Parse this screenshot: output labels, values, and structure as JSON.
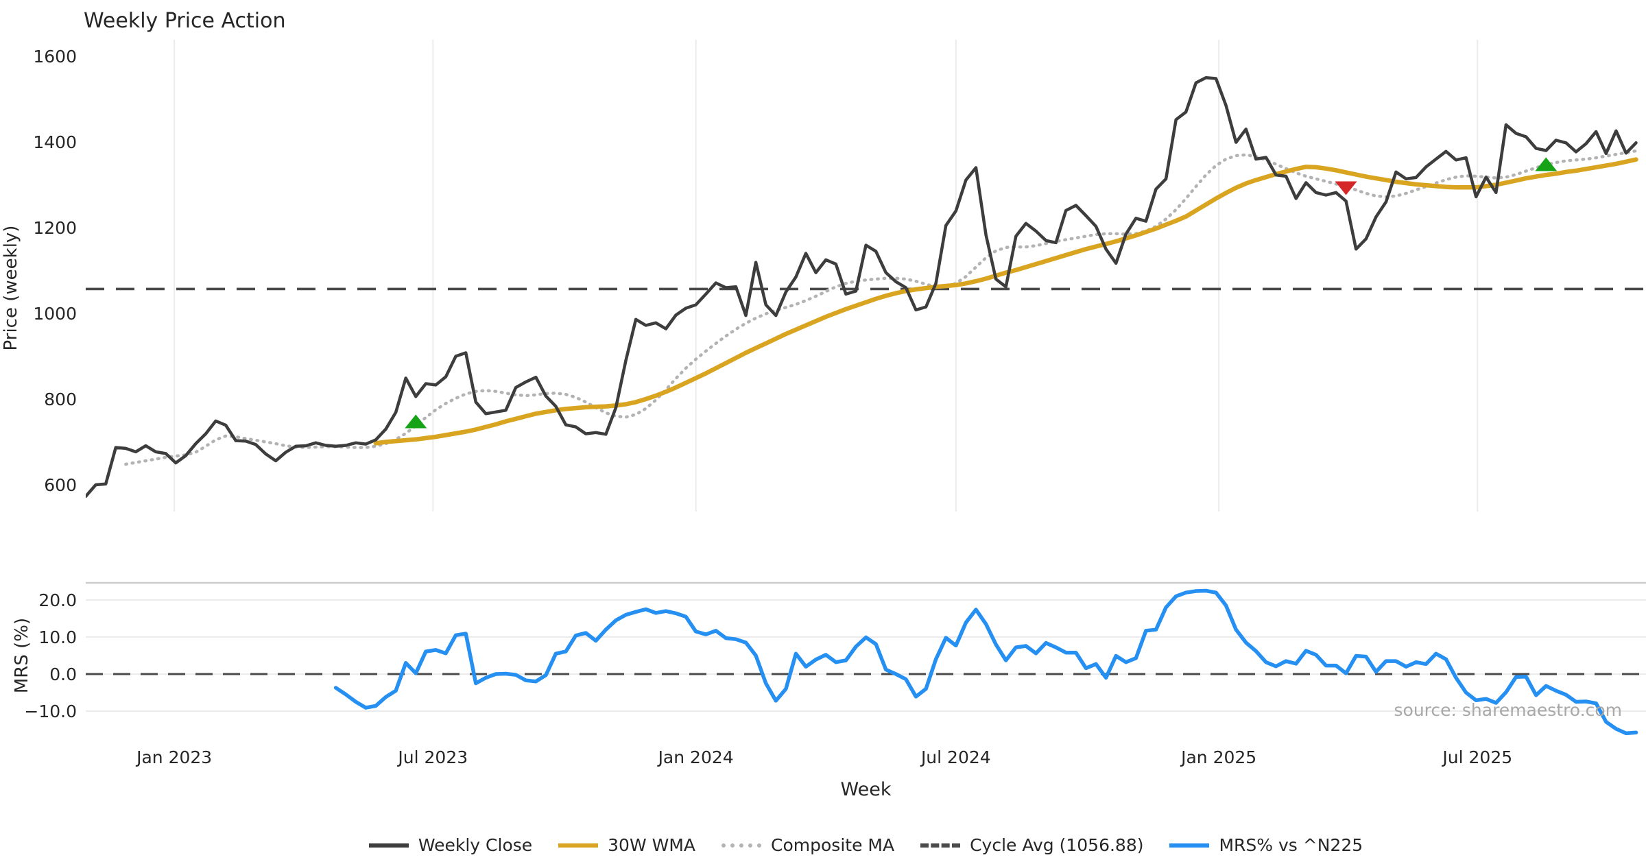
{
  "title": "Weekly Price Action",
  "source_note": "source: sharemaestro.com",
  "colors": {
    "weekly_close": "#3d3d3d",
    "wma": "#d9a521",
    "composite": "#b3b3b3",
    "cycle_avg": "#4a4a4a",
    "mrs": "#2590f2",
    "buy_marker": "#17a317",
    "sell_marker": "#d62728",
    "grid": "#ebebeb",
    "panel_border": "#cccccc",
    "text": "#262626",
    "muted_text": "#a8a8a8"
  },
  "legend": [
    {
      "label": "Weekly Close",
      "color": "#3d3d3d",
      "style": "solid"
    },
    {
      "label": "30W WMA",
      "color": "#d9a521",
      "style": "solid"
    },
    {
      "label": "Composite MA",
      "color": "#b3b3b3",
      "style": "dotted"
    },
    {
      "label": "Cycle Avg (1056.88)",
      "color": "#4a4a4a",
      "style": "dashed"
    },
    {
      "label": "MRS% vs ^N225",
      "color": "#2590f2",
      "style": "solid"
    }
  ],
  "chart_data": [
    {
      "type": "line",
      "panel": "price",
      "title": "Weekly Price Action",
      "xlabel": "Week",
      "ylabel": "Price (weekly)",
      "ylim": [
        560,
        1625
      ],
      "yticks": [
        600,
        800,
        1000,
        1200,
        1400,
        1600
      ],
      "xticks": [
        {
          "week": 8.857,
          "label": "Jan 2023"
        },
        {
          "week": 34.714,
          "label": "Jul 2023"
        },
        {
          "week": 61.0,
          "label": "Jan 2024"
        },
        {
          "week": 87.0,
          "label": "Jul 2024"
        },
        {
          "week": 113.286,
          "label": "Jan 2025"
        },
        {
          "week": 139.143,
          "label": "Jul 2025"
        }
      ],
      "cycle_avg": 1056.88,
      "series": [
        {
          "name": "Weekly Close",
          "start_week": 0,
          "values": [
            573,
            600,
            602,
            687,
            685,
            677,
            691,
            677,
            673,
            651,
            668,
            696,
            719,
            749,
            739,
            703,
            702,
            694,
            672,
            656,
            676,
            690,
            691,
            698,
            692,
            690,
            692,
            698,
            695,
            705,
            730,
            769,
            849,
            806,
            836,
            833,
            852,
            900,
            908,
            793,
            766,
            770,
            774,
            827,
            840,
            851,
            807,
            783,
            740,
            735,
            719,
            722,
            718,
            780,
            890,
            986,
            972,
            978,
            964,
            996,
            1012,
            1020,
            1045,
            1071,
            1060,
            1062,
            995,
            1119,
            1020,
            995,
            1050,
            1085,
            1140,
            1095,
            1125,
            1115,
            1045,
            1052,
            1159,
            1145,
            1095,
            1074,
            1060,
            1008,
            1015,
            1070,
            1205,
            1239,
            1311,
            1340,
            1183,
            1080,
            1062,
            1180,
            1210,
            1192,
            1170,
            1165,
            1240,
            1252,
            1228,
            1203,
            1150,
            1117,
            1185,
            1222,
            1215,
            1290,
            1314,
            1452,
            1470,
            1538,
            1550,
            1548,
            1485,
            1399,
            1430,
            1360,
            1364,
            1323,
            1320,
            1268,
            1305,
            1282,
            1276,
            1282,
            1262,
            1150,
            1174,
            1225,
            1260,
            1330,
            1314,
            1317,
            1342,
            1360,
            1378,
            1358,
            1363,
            1272,
            1318,
            1282,
            1440,
            1420,
            1412,
            1385,
            1380,
            1404,
            1398,
            1377,
            1396,
            1424,
            1373,
            1426,
            1374,
            1398
          ]
        },
        {
          "name": "30W WMA",
          "start_week": 29,
          "values": [
            697,
            700,
            702,
            704,
            706,
            709,
            712,
            716,
            720,
            724,
            729,
            735,
            741,
            748,
            754,
            760,
            766,
            770,
            774,
            777,
            779,
            781,
            782,
            783,
            785,
            788,
            793,
            800,
            808,
            817,
            827,
            838,
            849,
            860,
            872,
            884,
            896,
            908,
            919,
            930,
            941,
            952,
            962,
            972,
            982,
            992,
            1001,
            1010,
            1018,
            1026,
            1034,
            1041,
            1047,
            1052,
            1056,
            1059,
            1062,
            1064,
            1066,
            1070,
            1075,
            1081,
            1088,
            1095,
            1101,
            1108,
            1115,
            1122,
            1129,
            1136,
            1143,
            1150,
            1156,
            1162,
            1168,
            1175,
            1182,
            1190,
            1198,
            1207,
            1216,
            1226,
            1240,
            1254,
            1268,
            1281,
            1293,
            1303,
            1311,
            1318,
            1325,
            1331,
            1337,
            1342,
            1341,
            1338,
            1334,
            1329,
            1324,
            1319,
            1315,
            1311,
            1307,
            1304,
            1301,
            1299,
            1297,
            1295,
            1294,
            1294,
            1294,
            1297,
            1300,
            1305,
            1310,
            1315,
            1319,
            1323,
            1326,
            1330,
            1333,
            1337,
            1341,
            1345,
            1349,
            1354,
            1359
          ]
        },
        {
          "name": "Composite MA",
          "start_week": 4,
          "values": [
            648,
            652,
            656,
            660,
            664,
            667,
            670,
            676,
            690,
            705,
            714,
            712,
            708,
            704,
            700,
            696,
            691,
            688,
            687,
            688,
            689,
            689,
            688,
            687,
            687,
            690,
            696,
            706,
            720,
            738,
            757,
            775,
            790,
            802,
            812,
            818,
            820,
            818,
            814,
            810,
            808,
            810,
            813,
            814,
            811,
            804,
            793,
            780,
            768,
            760,
            758,
            764,
            778,
            798,
            822,
            848,
            872,
            893,
            912,
            930,
            947,
            963,
            977,
            989,
            999,
            1007,
            1014,
            1021,
            1030,
            1040,
            1051,
            1062,
            1070,
            1075,
            1078,
            1080,
            1082,
            1082,
            1080,
            1075,
            1068,
            1062,
            1062,
            1070,
            1086,
            1108,
            1130,
            1146,
            1154,
            1155,
            1155,
            1158,
            1163,
            1168,
            1172,
            1176,
            1180,
            1184,
            1186,
            1186,
            1185,
            1186,
            1192,
            1203,
            1220,
            1242,
            1268,
            1296,
            1323,
            1345,
            1360,
            1368,
            1370,
            1366,
            1358,
            1348,
            1338,
            1328,
            1320,
            1314,
            1308,
            1302,
            1296,
            1288,
            1280,
            1274,
            1272,
            1274,
            1280,
            1288,
            1296,
            1304,
            1312,
            1318,
            1321,
            1320,
            1318,
            1316,
            1318,
            1324,
            1332,
            1340,
            1347,
            1352,
            1356,
            1358,
            1360,
            1363,
            1367,
            1371,
            1375,
            1379
          ]
        }
      ],
      "markers": [
        {
          "week": 33,
          "price": 748,
          "type": "buy"
        },
        {
          "week": 126,
          "price": 1292,
          "type": "sell"
        },
        {
          "week": 146,
          "price": 1348,
          "type": "buy"
        }
      ]
    },
    {
      "type": "line",
      "panel": "mrs",
      "ylabel": "MRS (%)",
      "ylim": [
        -17,
        24.6
      ],
      "yticks": [
        {
          "v": 20,
          "label": "20.0"
        },
        {
          "v": 10,
          "label": "10.0"
        },
        {
          "v": 0,
          "label": "0.0"
        },
        {
          "v": -10,
          "label": "−10.0"
        }
      ],
      "zero_dashed": true,
      "series": [
        {
          "name": "MRS% vs ^N225",
          "start_week": 25,
          "values": [
            -3.7,
            -5.5,
            -7.5,
            -9.1,
            -8.6,
            -6.2,
            -4.5,
            3.0,
            0.2,
            6.1,
            6.5,
            5.6,
            10.5,
            10.9,
            -2.5,
            -1.0,
            0.0,
            0.1,
            -0.2,
            -1.7,
            -2.0,
            -0.3,
            5.5,
            6.1,
            10.4,
            11.1,
            9.0,
            12.0,
            14.5,
            16.0,
            16.8,
            17.5,
            16.5,
            17.0,
            16.4,
            15.5,
            11.5,
            10.7,
            11.7,
            9.7,
            9.4,
            8.5,
            5.0,
            -2.5,
            -7.2,
            -4.0,
            5.5,
            2.0,
            3.9,
            5.2,
            3.2,
            3.7,
            7.4,
            9.9,
            8.1,
            1.2,
            0.0,
            -1.4,
            -6.1,
            -4.0,
            4.0,
            9.8,
            7.7,
            13.9,
            17.4,
            13.5,
            8.0,
            3.7,
            7.2,
            7.6,
            5.6,
            8.4,
            7.2,
            5.8,
            5.8,
            1.6,
            2.7,
            -1.0,
            4.9,
            3.2,
            4.3,
            11.7,
            12.0,
            18.0,
            21.0,
            22.0,
            22.4,
            22.5,
            22.0,
            18.5,
            12.0,
            8.5,
            6.2,
            3.2,
            2.1,
            3.5,
            2.8,
            6.3,
            5.2,
            2.3,
            2.3,
            0.2,
            4.9,
            4.7,
            0.6,
            3.5,
            3.5,
            2.0,
            3.2,
            2.7,
            5.5,
            4.0,
            -1.0,
            -5.0,
            -7.1,
            -6.7,
            -7.8,
            -4.9,
            -0.8,
            -0.7,
            -5.7,
            -3.2,
            -4.5,
            -5.6,
            -7.5,
            -7.4,
            -7.9,
            -12.9,
            -14.8,
            -16.0,
            -15.8
          ]
        }
      ]
    }
  ]
}
